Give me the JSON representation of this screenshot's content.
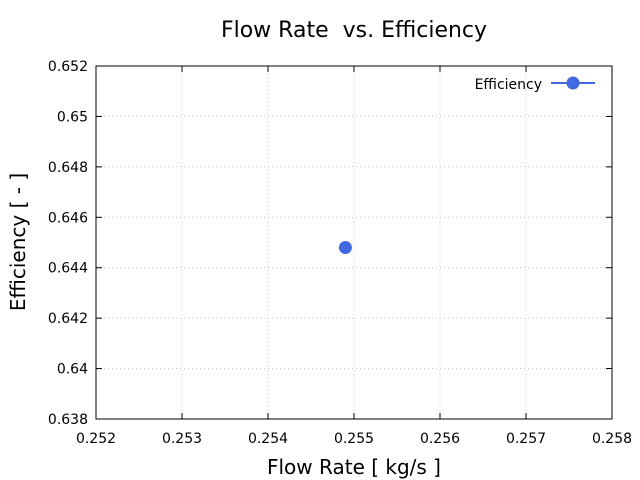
{
  "chart_data": {
    "type": "scatter",
    "title": "Flow Rate  vs. Efficiency",
    "xlabel": "Flow Rate [ kg/s ]",
    "ylabel": "Efficiency [ - ]",
    "xlim": [
      0.252,
      0.258
    ],
    "ylim": [
      0.638,
      0.652
    ],
    "xticks": [
      "0.252",
      "0.253",
      "0.254",
      "0.255",
      "0.256",
      "0.257",
      "0.258"
    ],
    "yticks": [
      "0.638",
      "0.64",
      "0.642",
      "0.644",
      "0.646",
      "0.648",
      "0.65",
      "0.652"
    ],
    "grid": true,
    "legend_position": "top-right",
    "series": [
      {
        "name": "Efficiency",
        "color": "#4169e1",
        "x": [
          0.2549
        ],
        "y": [
          0.6448
        ]
      }
    ]
  }
}
